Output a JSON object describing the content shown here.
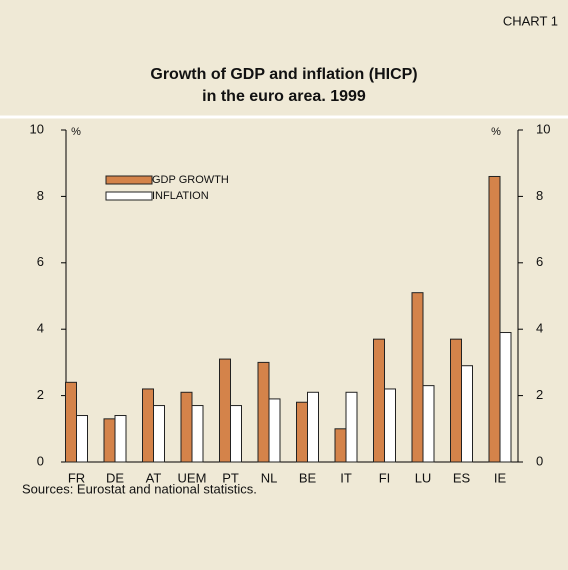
{
  "chart_data": {
    "type": "bar",
    "label": "CHART 1",
    "title_lines": [
      "Growth of GDP and inflation (HICP)",
      "in the euro area. 1999"
    ],
    "y_unit": "%",
    "y2_unit": "%",
    "categories": [
      "FR",
      "DE",
      "AT",
      "UEM",
      "PT",
      "NL",
      "BE",
      "IT",
      "FI",
      "LU",
      "ES",
      "IE"
    ],
    "series": [
      {
        "name": "GDP GROWTH",
        "color": "#d4834a",
        "values": [
          2.4,
          1.3,
          2.2,
          2.1,
          3.1,
          3.0,
          1.8,
          1.0,
          3.7,
          5.1,
          3.7,
          8.6
        ]
      },
      {
        "name": "INFLATION",
        "color": "#ffffff",
        "values": [
          1.4,
          1.4,
          1.7,
          1.7,
          1.7,
          1.9,
          2.1,
          2.1,
          2.2,
          2.3,
          2.9,
          3.9
        ]
      }
    ],
    "ylim": [
      0,
      10
    ],
    "yticks": [
      0,
      2,
      4,
      6,
      8,
      10
    ],
    "y2lim": [
      0,
      10
    ],
    "y2ticks": [
      0,
      2,
      4,
      6,
      8,
      10
    ],
    "source": "Sources: Eurostat and national statistics."
  }
}
